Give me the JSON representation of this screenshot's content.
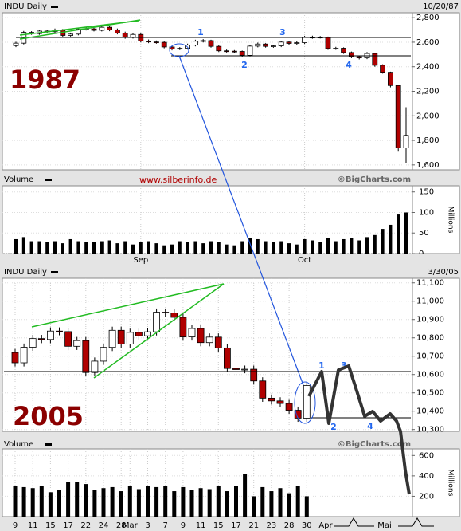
{
  "watermark": "www.silberinfo.de",
  "chart_data": [
    {
      "type": "candlestick",
      "title": "INDU Daily",
      "date": "10/20/87",
      "label": "1987",
      "categories": [
        null,
        null,
        null,
        null,
        null,
        null,
        null,
        null,
        null,
        null,
        null,
        null,
        null,
        null,
        null,
        null,
        "Sep",
        null,
        null,
        null,
        null,
        null,
        null,
        null,
        null,
        null,
        null,
        null,
        null,
        null,
        null,
        null,
        null,
        null,
        null,
        null,
        null,
        "Oct",
        null,
        null,
        null,
        null,
        null,
        null,
        null,
        null,
        null,
        null,
        null,
        null,
        null
      ],
      "open": [
        2572,
        2592,
        2680,
        2670,
        2691,
        2685,
        2700,
        2655,
        2666,
        2706,
        2709,
        2697,
        2722,
        2701,
        2675,
        2639,
        2663,
        2610,
        2602,
        2599,
        2561,
        2545,
        2550,
        2576,
        2608,
        2613,
        2566,
        2530,
        2527,
        2525,
        2493,
        2568,
        2585,
        2566,
        2570,
        2601,
        2590,
        2596,
        2639,
        2641,
        2640,
        2549,
        2551,
        2516,
        2482,
        2472,
        2508,
        2412,
        2355,
        2247,
        1739
      ],
      "high": [
        2604,
        2692,
        2690,
        2703,
        2700,
        2712,
        2708,
        2678,
        2718,
        2720,
        2718,
        2734,
        2730,
        2712,
        2686,
        2675,
        2672,
        2622,
        2614,
        2606,
        2570,
        2560,
        2588,
        2620,
        2625,
        2620,
        2574,
        2540,
        2536,
        2532,
        2580,
        2597,
        2592,
        2580,
        2612,
        2608,
        2608,
        2652,
        2653,
        2650,
        2646,
        2562,
        2558,
        2524,
        2490,
        2520,
        2514,
        2420,
        2360,
        2247,
        2070
      ],
      "low": [
        2560,
        2582,
        2660,
        2660,
        2676,
        2675,
        2645,
        2646,
        2656,
        2696,
        2688,
        2688,
        2690,
        2664,
        2628,
        2630,
        2598,
        2592,
        2588,
        2550,
        2534,
        2536,
        2540,
        2566,
        2598,
        2556,
        2520,
        2516,
        2514,
        2482,
        2484,
        2558,
        2556,
        2555,
        2560,
        2580,
        2580,
        2586,
        2628,
        2630,
        2538,
        2538,
        2505,
        2470,
        2460,
        2462,
        2400,
        2344,
        2232,
        1708,
        1616
      ],
      "close": [
        2592,
        2680,
        2670,
        2691,
        2685,
        2700,
        2655,
        2666,
        2706,
        2709,
        2697,
        2722,
        2701,
        2675,
        2639,
        2663,
        2610,
        2602,
        2599,
        2561,
        2545,
        2550,
        2576,
        2608,
        2613,
        2566,
        2530,
        2527,
        2525,
        2493,
        2568,
        2585,
        2566,
        2570,
        2601,
        2590,
        2596,
        2639,
        2641,
        2640,
        2549,
        2551,
        2516,
        2482,
        2472,
        2508,
        2412,
        2355,
        2247,
        1739,
        1841
      ],
      "ylim": [
        1560,
        2840
      ],
      "yticks": [
        {
          "value": 1600,
          "label": "1,600"
        },
        {
          "value": 1800,
          "label": "1,800"
        },
        {
          "value": 2000,
          "label": "2,000"
        },
        {
          "value": 2200,
          "label": "2,200"
        },
        {
          "value": 2400,
          "label": "2,400"
        },
        {
          "value": 2600,
          "label": "2,600"
        },
        {
          "value": 2800,
          "label": "2,800"
        }
      ],
      "grid": true,
      "up_color": "#ffffff",
      "down_color": "#b00000",
      "wave_labels": [
        "1",
        "2",
        "3",
        "4"
      ],
      "volume": {
        "title": "Volume",
        "credit": "©BigCharts.com",
        "unit": "Millions",
        "color": "#000000",
        "values": [
          35,
          40,
          30,
          30,
          28,
          30,
          25,
          35,
          30,
          28,
          28,
          30,
          32,
          25,
          30,
          22,
          28,
          30,
          25,
          20,
          22,
          30,
          28,
          30,
          25,
          30,
          28,
          22,
          20,
          30,
          38,
          35,
          30,
          28,
          30,
          25,
          22,
          35,
          32,
          28,
          38,
          30,
          35,
          38,
          32,
          40,
          45,
          60,
          70,
          95,
          100
        ],
        "ylim": [
          0,
          165
        ],
        "yticks": [
          0,
          50,
          100,
          150
        ]
      }
    },
    {
      "type": "candlestick",
      "title": "INDU Daily",
      "date": "3/30/05",
      "label": "2005",
      "categories": [
        "9",
        null,
        "11",
        null,
        "15",
        null,
        "17",
        null,
        "22",
        null,
        "24",
        null,
        "28",
        "Mar",
        null,
        "3",
        null,
        "7",
        null,
        "9",
        null,
        "11",
        null,
        "15",
        null,
        "17",
        null,
        "21",
        null,
        "23",
        null,
        "28",
        null,
        "30"
      ],
      "extra_labels": [
        "Apr",
        "Mai"
      ],
      "open": [
        10720,
        10664,
        10749,
        10796,
        10791,
        10837,
        10834,
        10754,
        10785,
        10611,
        10673,
        10748,
        10841,
        10766,
        10830,
        10811,
        10833,
        10940,
        10936,
        10912,
        10805,
        10851,
        10774,
        10804,
        10745,
        10633,
        10627,
        10629,
        10565,
        10471,
        10456,
        10442,
        10405,
        10362
      ],
      "high": [
        10740,
        10769,
        10816,
        10816,
        10857,
        10857,
        10854,
        10805,
        10805,
        10693,
        10768,
        10861,
        10861,
        10850,
        10850,
        10853,
        10960,
        10960,
        10956,
        10932,
        10871,
        10871,
        10824,
        10824,
        10765,
        10653,
        10649,
        10649,
        10585,
        10491,
        10476,
        10462,
        10425,
        10560
      ],
      "low": [
        10644,
        10644,
        10729,
        10771,
        10771,
        10814,
        10734,
        10734,
        10591,
        10591,
        10653,
        10728,
        10746,
        10746,
        10791,
        10791,
        10813,
        10916,
        10892,
        10785,
        10785,
        10754,
        10754,
        10725,
        10613,
        10607,
        10607,
        10545,
        10451,
        10436,
        10422,
        10385,
        10342,
        10342
      ],
      "close": [
        10664,
        10749,
        10796,
        10791,
        10837,
        10834,
        10754,
        10785,
        10611,
        10673,
        10748,
        10841,
        10766,
        10830,
        10811,
        10833,
        10940,
        10936,
        10912,
        10805,
        10851,
        10774,
        10804,
        10745,
        10633,
        10627,
        10629,
        10565,
        10471,
        10456,
        10442,
        10405,
        10362,
        10540
      ],
      "ylim": [
        10290,
        11125
      ],
      "yticks": [
        {
          "value": 10300,
          "label": "10,300"
        },
        {
          "value": 10400,
          "label": "10,400"
        },
        {
          "value": 10500,
          "label": "10,500"
        },
        {
          "value": 10600,
          "label": "10,600"
        },
        {
          "value": 10700,
          "label": "10,700"
        },
        {
          "value": 10800,
          "label": "10,800"
        },
        {
          "value": 10900,
          "label": "10,900"
        },
        {
          "value": 11000,
          "label": "11,000"
        },
        {
          "value": 11100,
          "label": "11,100"
        }
      ],
      "grid": true,
      "up_color": "#ffffff",
      "down_color": "#b00000",
      "wave_labels": [
        "1",
        "2",
        "3",
        "4"
      ],
      "volume": {
        "title": "Volume",
        "credit": "©BigCharts.com",
        "unit": "Millions",
        "color": "#000000",
        "values": [
          300,
          290,
          280,
          300,
          240,
          260,
          340,
          340,
          320,
          260,
          280,
          290,
          250,
          300,
          270,
          300,
          290,
          300,
          250,
          290,
          260,
          280,
          270,
          300,
          250,
          300,
          420,
          200,
          290,
          250,
          280,
          230,
          300,
          200
        ],
        "ylim": [
          0,
          665
        ],
        "yticks": [
          200,
          400,
          600
        ]
      }
    }
  ]
}
